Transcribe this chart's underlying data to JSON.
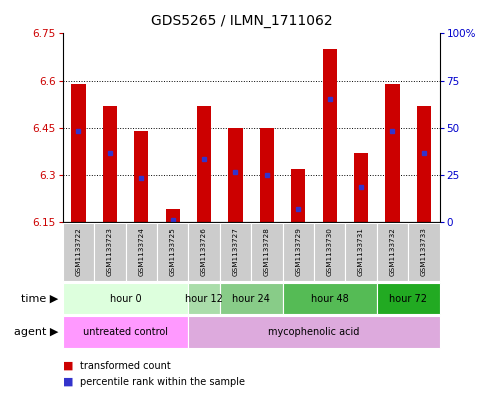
{
  "title": "GDS5265 / ILMN_1711062",
  "samples": [
    "GSM1133722",
    "GSM1133723",
    "GSM1133724",
    "GSM1133725",
    "GSM1133726",
    "GSM1133727",
    "GSM1133728",
    "GSM1133729",
    "GSM1133730",
    "GSM1133731",
    "GSM1133732",
    "GSM1133733"
  ],
  "bar_bottoms": [
    6.15,
    6.15,
    6.15,
    6.15,
    6.15,
    6.15,
    6.15,
    6.15,
    6.15,
    6.15,
    6.15,
    6.15
  ],
  "bar_tops": [
    6.59,
    6.52,
    6.44,
    6.19,
    6.52,
    6.45,
    6.45,
    6.32,
    6.7,
    6.37,
    6.59,
    6.52
  ],
  "blue_dots": [
    6.44,
    6.37,
    6.29,
    6.155,
    6.35,
    6.31,
    6.3,
    6.19,
    6.54,
    6.26,
    6.44,
    6.37
  ],
  "ylim_left": [
    6.15,
    6.75
  ],
  "ylim_right": [
    0,
    100
  ],
  "yticks_left": [
    6.15,
    6.3,
    6.45,
    6.6,
    6.75
  ],
  "yticks_right": [
    0,
    25,
    50,
    75,
    100
  ],
  "ytick_labels_left": [
    "6.15",
    "6.3",
    "6.45",
    "6.6",
    "6.75"
  ],
  "ytick_labels_right": [
    "0",
    "25",
    "50",
    "75",
    "100%"
  ],
  "bar_color": "#cc0000",
  "dot_color": "#3333cc",
  "time_groups": [
    {
      "label": "hour 0",
      "start": 0,
      "end": 4,
      "color": "#ddffdd"
    },
    {
      "label": "hour 12",
      "start": 4,
      "end": 5,
      "color": "#aaddaa"
    },
    {
      "label": "hour 24",
      "start": 5,
      "end": 7,
      "color": "#88cc88"
    },
    {
      "label": "hour 48",
      "start": 7,
      "end": 10,
      "color": "#55bb55"
    },
    {
      "label": "hour 72",
      "start": 10,
      "end": 12,
      "color": "#22aa22"
    }
  ],
  "agent_groups": [
    {
      "label": "untreated control",
      "start": 0,
      "end": 4,
      "color": "#ff99ff"
    },
    {
      "label": "mycophenolic acid",
      "start": 4,
      "end": 12,
      "color": "#ddaadd"
    }
  ],
  "legend_red_label": "transformed count",
  "legend_blue_label": "percentile rank within the sample",
  "left_label_color": "#cc0000",
  "right_label_color": "#0000cc",
  "title_fontsize": 10,
  "tick_fontsize": 7.5,
  "bar_width": 0.45,
  "sample_bg_color": "#cccccc",
  "sample_fontsize": 5.2,
  "row_label_fontsize": 8,
  "time_fontsize": 7,
  "agent_fontsize": 7,
  "legend_fontsize": 7
}
